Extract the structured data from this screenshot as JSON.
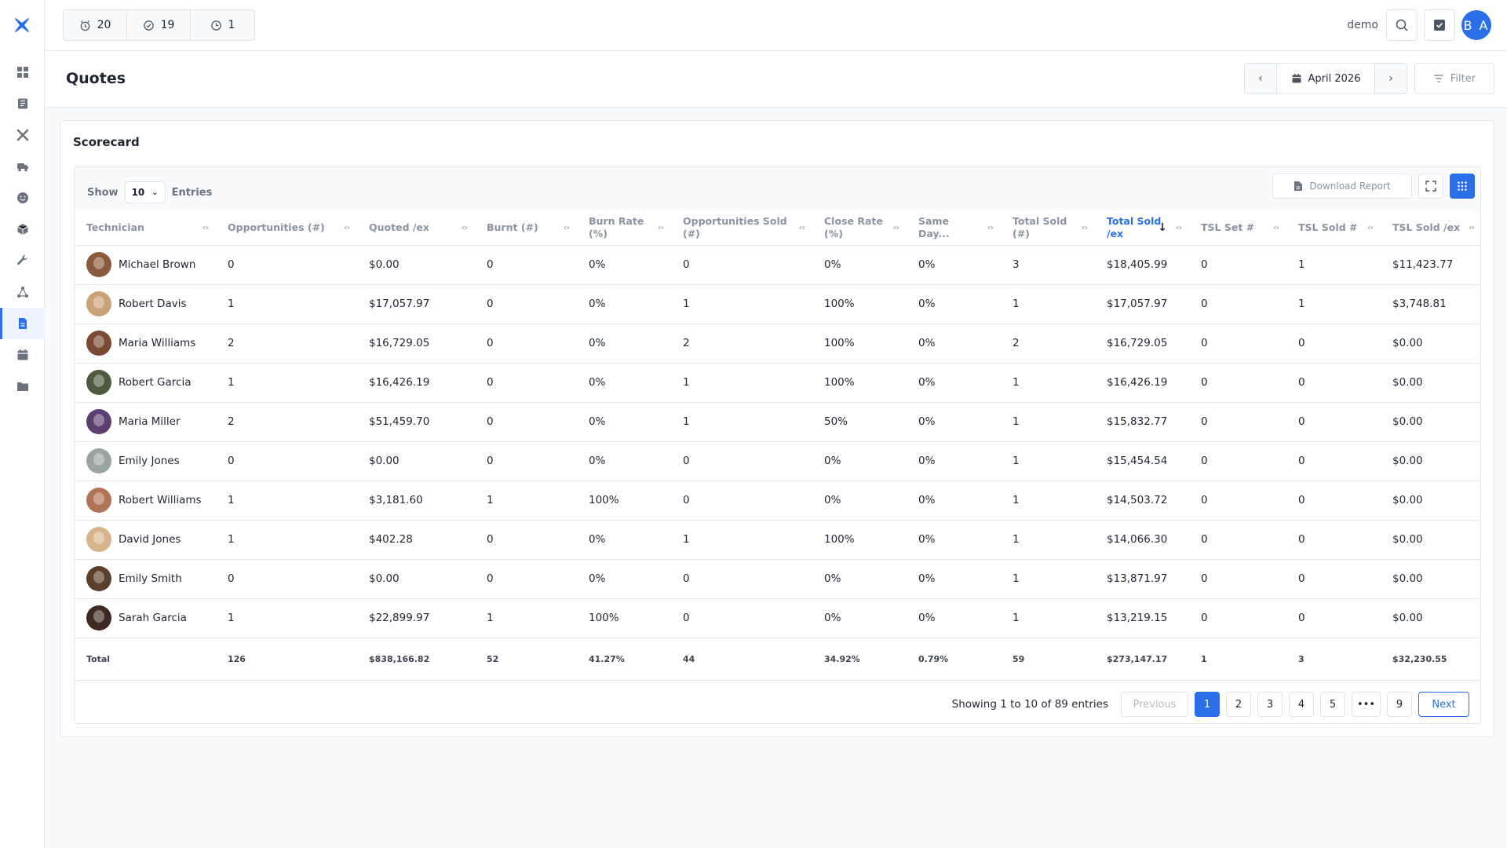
{
  "topbar": {
    "counters": [
      {
        "icon": "alarm-clock-icon",
        "value": "20"
      },
      {
        "icon": "check-circle-icon",
        "value": "19"
      },
      {
        "icon": "clock-icon",
        "value": "1"
      }
    ],
    "user": "demo",
    "avatar_initials": "B A"
  },
  "sidebar": {
    "items": [
      {
        "icon": "dashboard-icon"
      },
      {
        "icon": "book-icon"
      },
      {
        "icon": "tools-icon"
      },
      {
        "icon": "truck-icon"
      },
      {
        "icon": "smiley-icon"
      },
      {
        "icon": "box-icon"
      },
      {
        "icon": "wrench-icon"
      },
      {
        "icon": "network-icon"
      },
      {
        "icon": "document-icon",
        "active": true
      },
      {
        "icon": "calendar-icon"
      },
      {
        "icon": "folder-icon"
      }
    ]
  },
  "header": {
    "title": "Quotes",
    "date": "April 2026",
    "filter_label": "Filter"
  },
  "card": {
    "title": "Scorecard",
    "show_label": "Show",
    "entries_value": "10",
    "entries_label": "Entries",
    "download_label": "Download Report"
  },
  "table": {
    "columns": [
      "Technician",
      "Opportunities (#)",
      "Quoted /ex",
      "Burnt (#)",
      "Burn Rate (%)",
      "Opportunities Sold (#)",
      "Close Rate (%)",
      "Same Day...",
      "Total Sold (#)",
      "Total Sold /ex",
      "TSL Set #",
      "TSL Sold #",
      "TSL Sold /ex"
    ],
    "rows": [
      {
        "name": "Michael Brown",
        "c1": "0",
        "c2": "$0.00",
        "c3": "0",
        "c4": "0%",
        "c5": "0",
        "c6": "0%",
        "c7": "0%",
        "c8": "3",
        "c9": "$18,405.99",
        "c10": "0",
        "c11": "1",
        "c12": "$11,423.77"
      },
      {
        "name": "Robert Davis",
        "c1": "1",
        "c2": "$17,057.97",
        "c3": "0",
        "c4": "0%",
        "c5": "1",
        "c6": "100%",
        "c7": "0%",
        "c8": "1",
        "c9": "$17,057.97",
        "c10": "0",
        "c11": "1",
        "c12": "$3,748.81"
      },
      {
        "name": "Maria Williams",
        "c1": "2",
        "c2": "$16,729.05",
        "c3": "0",
        "c4": "0%",
        "c5": "2",
        "c6": "100%",
        "c7": "0%",
        "c8": "2",
        "c9": "$16,729.05",
        "c10": "0",
        "c11": "0",
        "c12": "$0.00"
      },
      {
        "name": "Robert Garcia",
        "c1": "1",
        "c2": "$16,426.19",
        "c3": "0",
        "c4": "0%",
        "c5": "1",
        "c6": "100%",
        "c7": "0%",
        "c8": "1",
        "c9": "$16,426.19",
        "c10": "0",
        "c11": "0",
        "c12": "$0.00"
      },
      {
        "name": "Maria Miller",
        "c1": "2",
        "c2": "$51,459.70",
        "c3": "0",
        "c4": "0%",
        "c5": "1",
        "c6": "50%",
        "c7": "0%",
        "c8": "1",
        "c9": "$15,832.77",
        "c10": "0",
        "c11": "0",
        "c12": "$0.00"
      },
      {
        "name": "Emily Jones",
        "c1": "0",
        "c2": "$0.00",
        "c3": "0",
        "c4": "0%",
        "c5": "0",
        "c6": "0%",
        "c7": "0%",
        "c8": "1",
        "c9": "$15,454.54",
        "c10": "0",
        "c11": "0",
        "c12": "$0.00"
      },
      {
        "name": "Robert Williams",
        "c1": "1",
        "c2": "$3,181.60",
        "c3": "1",
        "c4": "100%",
        "c5": "0",
        "c6": "0%",
        "c7": "0%",
        "c8": "1",
        "c9": "$14,503.72",
        "c10": "0",
        "c11": "0",
        "c12": "$0.00"
      },
      {
        "name": "David Jones",
        "c1": "1",
        "c2": "$402.28",
        "c3": "0",
        "c4": "0%",
        "c5": "1",
        "c6": "100%",
        "c7": "0%",
        "c8": "1",
        "c9": "$14,066.30",
        "c10": "0",
        "c11": "0",
        "c12": "$0.00"
      },
      {
        "name": "Emily Smith",
        "c1": "0",
        "c2": "$0.00",
        "c3": "0",
        "c4": "0%",
        "c5": "0",
        "c6": "0%",
        "c7": "0%",
        "c8": "1",
        "c9": "$13,871.97",
        "c10": "0",
        "c11": "0",
        "c12": "$0.00"
      },
      {
        "name": "Sarah Garcia",
        "c1": "1",
        "c2": "$22,899.97",
        "c3": "1",
        "c4": "100%",
        "c5": "0",
        "c6": "0%",
        "c7": "0%",
        "c8": "1",
        "c9": "$13,219.15",
        "c10": "0",
        "c11": "0",
        "c12": "$0.00"
      }
    ],
    "total": {
      "name": "Total",
      "c1": "126",
      "c2": "$838,166.82",
      "c3": "52",
      "c4": "41.27%",
      "c5": "44",
      "c6": "34.92%",
      "c7": "0.79%",
      "c8": "59",
      "c9": "$273,147.17",
      "c10": "1",
      "c11": "3",
      "c12": "$32,230.55"
    }
  },
  "pagination": {
    "info": "Showing 1 to 10 of 89 entries",
    "previous": "Previous",
    "pages": [
      "1",
      "2",
      "3",
      "4",
      "5",
      "•••",
      "9"
    ],
    "next": "Next"
  },
  "colors": {
    "accent": "#2a6fe8",
    "avatars": [
      "#8a5a3c",
      "#c9a27a",
      "#7a4a32",
      "#4d5a3e",
      "#5b3f6e",
      "#9aa5a0",
      "#b07355",
      "#d8b48c",
      "#5a3f2a",
      "#3e2a22"
    ]
  }
}
